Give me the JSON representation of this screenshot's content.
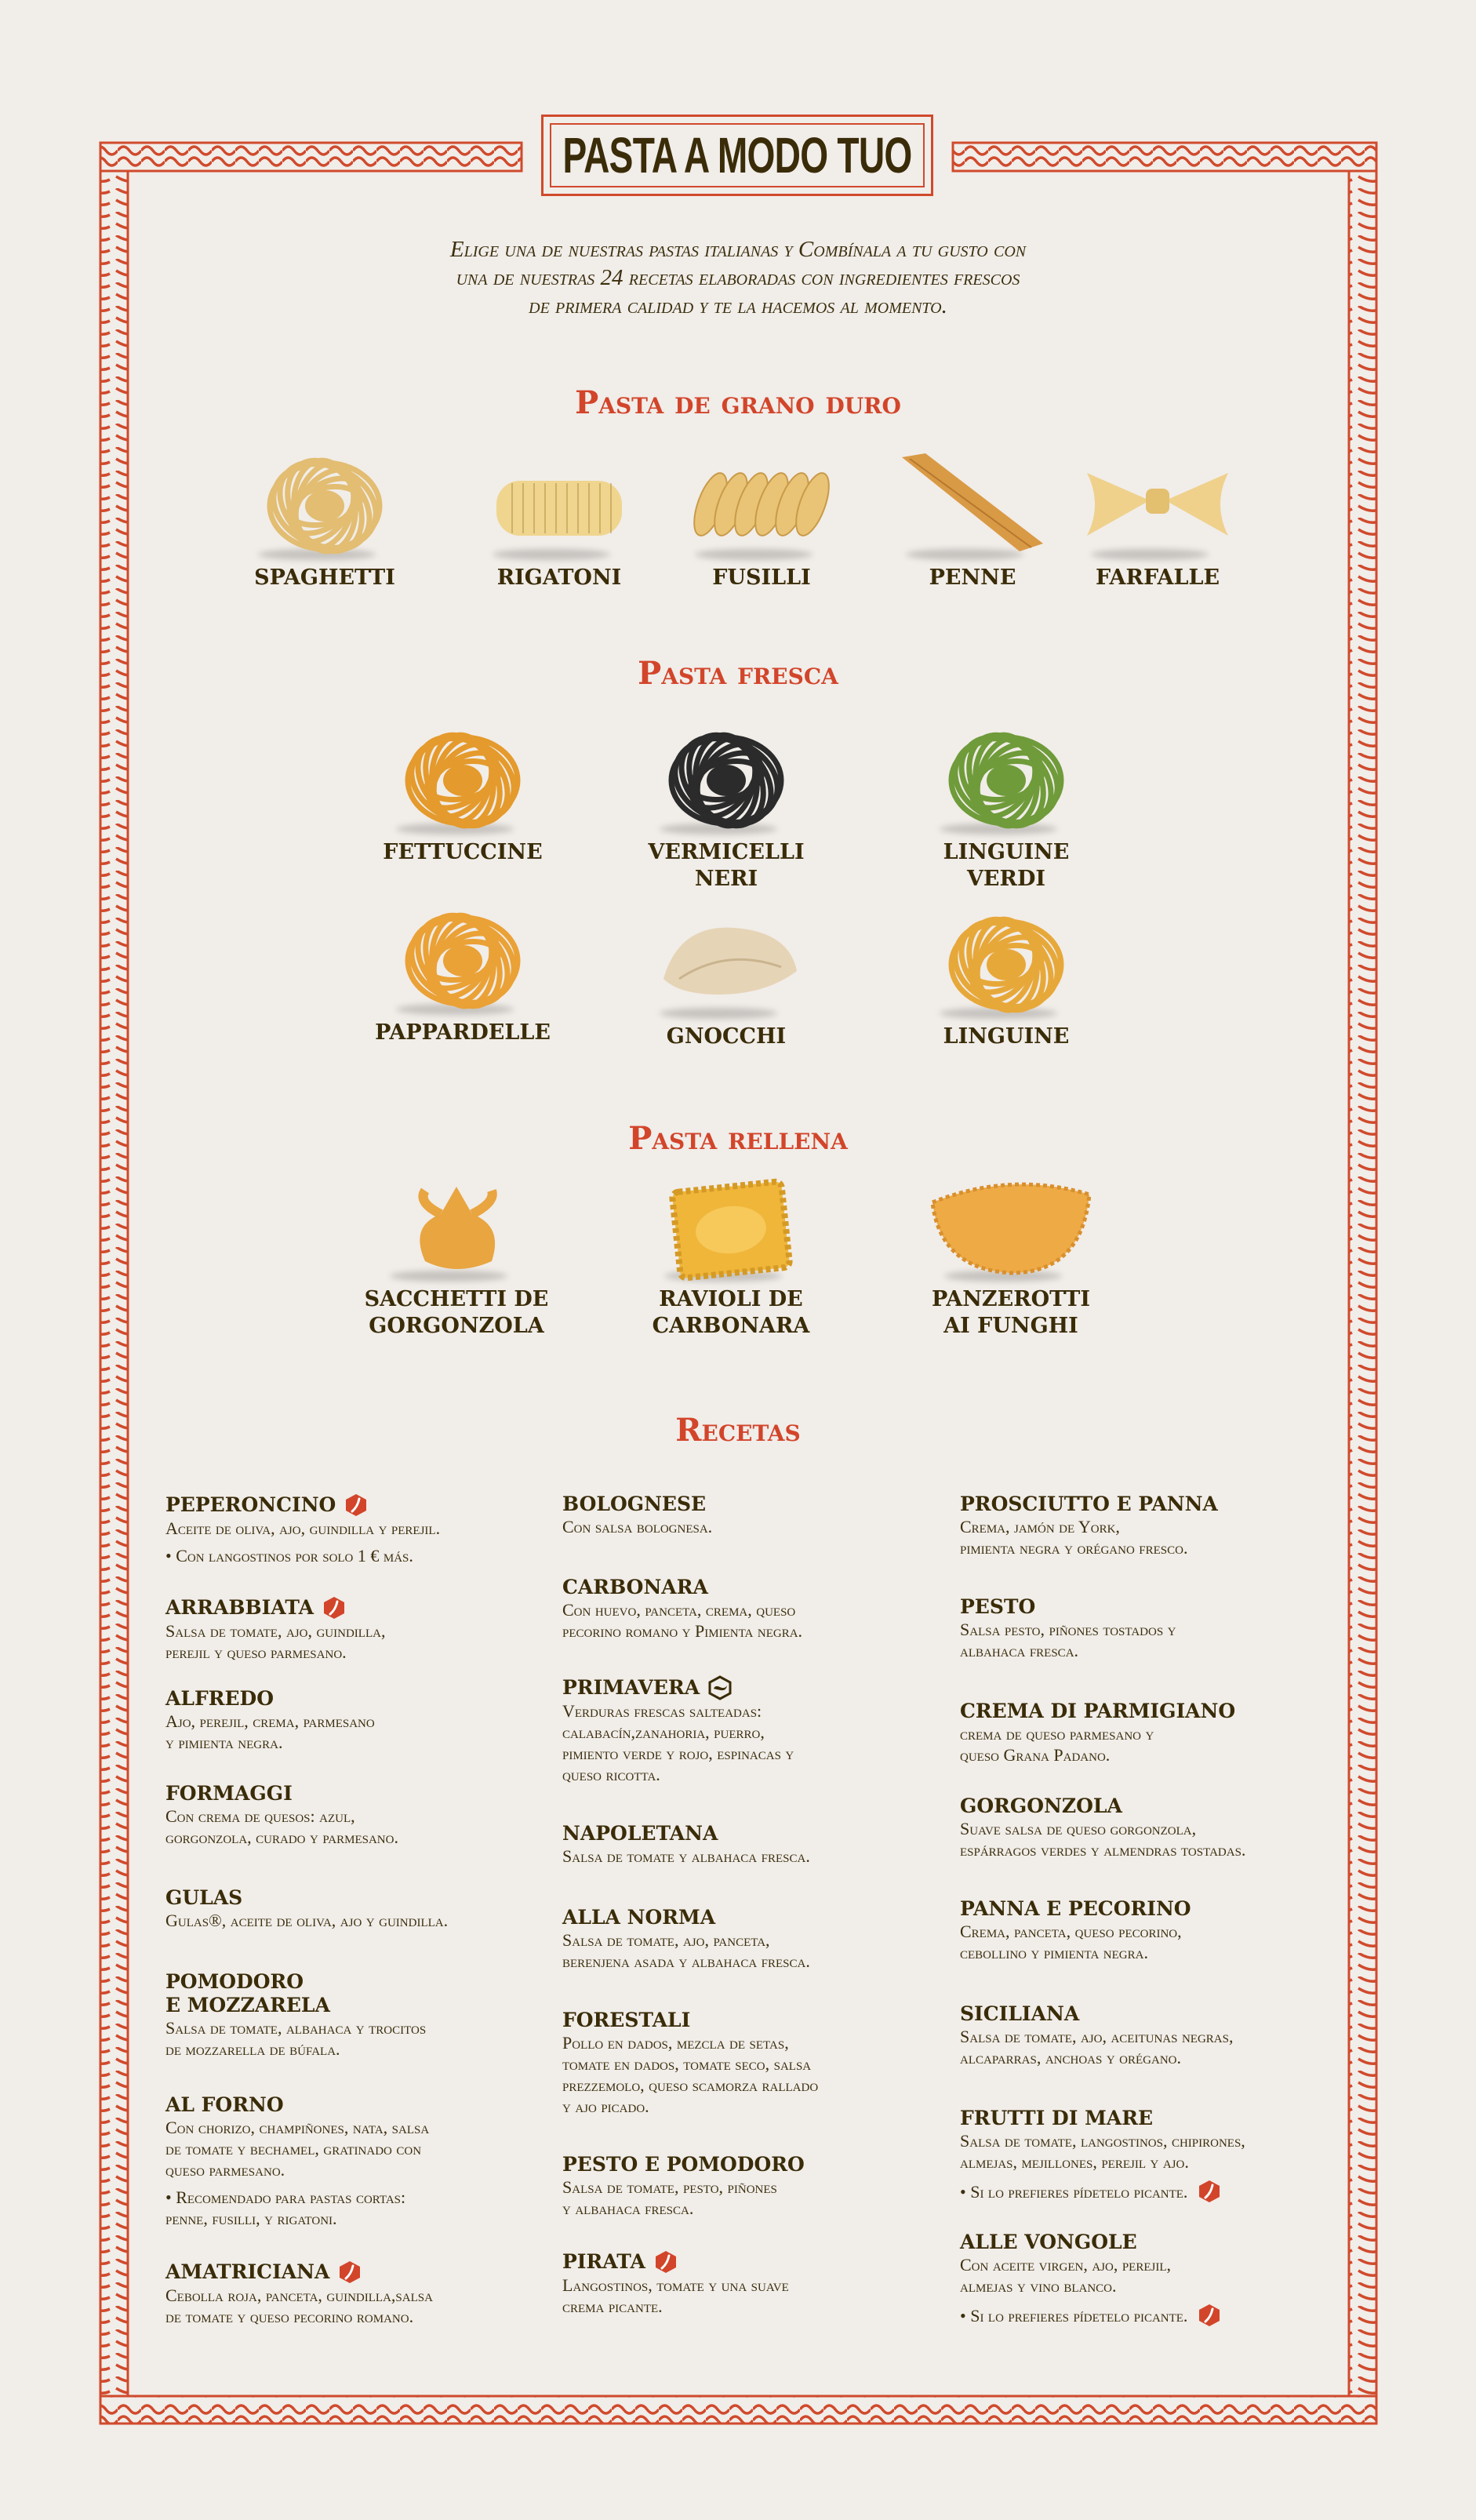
{
  "title": "PASTA A MODO TUO",
  "intro": [
    "Elige una de nuestras pastas italianas y Combínala a tu gusto con",
    "una de nuestras 24 recetas elaboradas con ingredientes frescos",
    "de primera calidad y te la hacemos al momento."
  ],
  "colors": {
    "accent": "#d2452a",
    "text": "#3a2c08",
    "background": "#f1ede9"
  },
  "sections": {
    "grano_duro": "Pasta de grano duro",
    "fresca": "Pasta fresca",
    "rellena": "Pasta rellena",
    "recetas": "Recetas"
  },
  "pastas": {
    "grano_duro": [
      {
        "label": "SPAGHETTI",
        "color": "#e2bd72"
      },
      {
        "label": "RIGATONI",
        "color": "#efd58e"
      },
      {
        "label": "FUSILLI",
        "color": "#e9c476"
      },
      {
        "label": "PENNE",
        "color": "#d99a45"
      },
      {
        "label": "FARFALLE",
        "color": "#efd18c"
      }
    ],
    "fresca": [
      {
        "label": "FETTUCCINE",
        "color": "#e49a2c"
      },
      {
        "label": "VERMICELLI NERI",
        "color": "#2b2b2b"
      },
      {
        "label": "LINGUINE VERDI",
        "color": "#6f9b3a"
      },
      {
        "label": "PAPPARDELLE",
        "color": "#eaa136"
      },
      {
        "label": "GNOCCHI",
        "color": "#e6d4b6"
      },
      {
        "label": "LINGUINE",
        "color": "#e7a83a"
      }
    ],
    "rellena": [
      {
        "label": "SACCHETTI DE\nGORGONZOLA",
        "color": "#e8a540"
      },
      {
        "label": "RAVIOLI DE\nCARBONARA",
        "color": "#f0b63a"
      },
      {
        "label": "PANZEROTTI\nAI FUNGHI",
        "color": "#eeaa45"
      }
    ]
  },
  "recipes": [
    {
      "name": "PEPERONCINO",
      "icon": "chili-icon",
      "desc": "Aceite de oliva, ajo, guindilla y perejil.",
      "note": "• Con langostinos por solo 1 € más."
    },
    {
      "name": "ARRABBIATA",
      "icon": "chili-icon",
      "desc": "Salsa de tomate, ajo, guindilla,\nperejil y queso parmesano."
    },
    {
      "name": "ALFREDO",
      "desc": "Ajo, perejil, crema, parmesano\ny pimienta negra."
    },
    {
      "name": "FORMAGGI",
      "desc": "Con crema de quesos: azul,\ngorgonzola, curado y parmesano."
    },
    {
      "name": "GULAS",
      "desc": "Gulas®, aceite de oliva, ajo y guindilla."
    },
    {
      "name": "POMODORO\nE MOZZARELA",
      "desc": "Salsa de tomate, albahaca y trocitos\nde mozzarella de búfala."
    },
    {
      "name": "AL FORNO",
      "desc": "Con chorizo, champiñones, nata, salsa\nde tomate y bechamel, gratinado con\nqueso parmesano.",
      "note": "• Recomendado para pastas cortas:\npenne, fusilli, y rigatoni."
    },
    {
      "name": "AMATRICIANA",
      "icon": "chili-icon",
      "desc": "Cebolla roja, panceta, guindilla,salsa\nde tomate y queso pecorino romano."
    },
    {
      "name": "BOLOGNESE",
      "desc": "Con salsa bolognesa."
    },
    {
      "name": "CARBONARA",
      "desc": "Con huevo, panceta, crema, queso\npecorino romano y Pimienta negra."
    },
    {
      "name": "PRIMAVERA",
      "icon": "vegetarian-icon",
      "desc": "Verduras frescas salteadas:\ncalabacín,zanahoria, puerro,\npimiento verde y rojo, espinacas y\nqueso ricotta."
    },
    {
      "name": "NAPOLETANA",
      "desc": "Salsa de tomate y albahaca fresca."
    },
    {
      "name": "ALLA NORMA",
      "desc": "Salsa de tomate, ajo, panceta,\nberenjena asada y albahaca fresca."
    },
    {
      "name": "FORESTALI",
      "desc": "Pollo en dados, mezcla de setas,\ntomate en dados, tomate seco, salsa\nprezzemolo, queso scamorza rallado\ny ajo picado."
    },
    {
      "name": "PESTO E POMODORO",
      "desc": "Salsa de tomate, pesto, piñones\ny albahaca fresca."
    },
    {
      "name": "PIRATA",
      "icon": "chili-icon",
      "desc": "Langostinos, tomate y una suave\ncrema picante."
    },
    {
      "name": "PROSCIUTTO E PANNA",
      "desc": "Crema, jamón de York,\npimienta negra y orégano fresco."
    },
    {
      "name": "PESTO",
      "desc": "Salsa pesto, piñones tostados y\nalbahaca fresca."
    },
    {
      "name": "CREMA DI PARMIGIANO",
      "desc": "crema de queso parmesano y\nqueso Grana Padano."
    },
    {
      "name": "GORGONZOLA",
      "desc": "Suave salsa de queso gorgonzola,\nespárragos verdes y almendras tostadas."
    },
    {
      "name": "PANNA E PECORINO",
      "desc": "Crema, panceta, queso pecorino,\ncebollino y pimienta negra."
    },
    {
      "name": "SICILIANA",
      "desc": "Salsa de tomate, ajo, aceitunas negras,\nalcaparras, anchoas y orégano."
    },
    {
      "name": "FRUTTI DI MARE",
      "desc": "Salsa de tomate, langostinos, chipirones,\nalmejas, mejillones, perejil y ajo.",
      "note": "• Si lo prefieres pídetelo picante.",
      "note_icon": "chili-icon"
    },
    {
      "name": "ALLE VONGOLE",
      "desc": "Con aceite virgen, ajo, perejil,\nalmejas y vino blanco.",
      "note": "• Si lo prefieres pídetelo picante.",
      "note_icon": "chili-icon"
    }
  ]
}
